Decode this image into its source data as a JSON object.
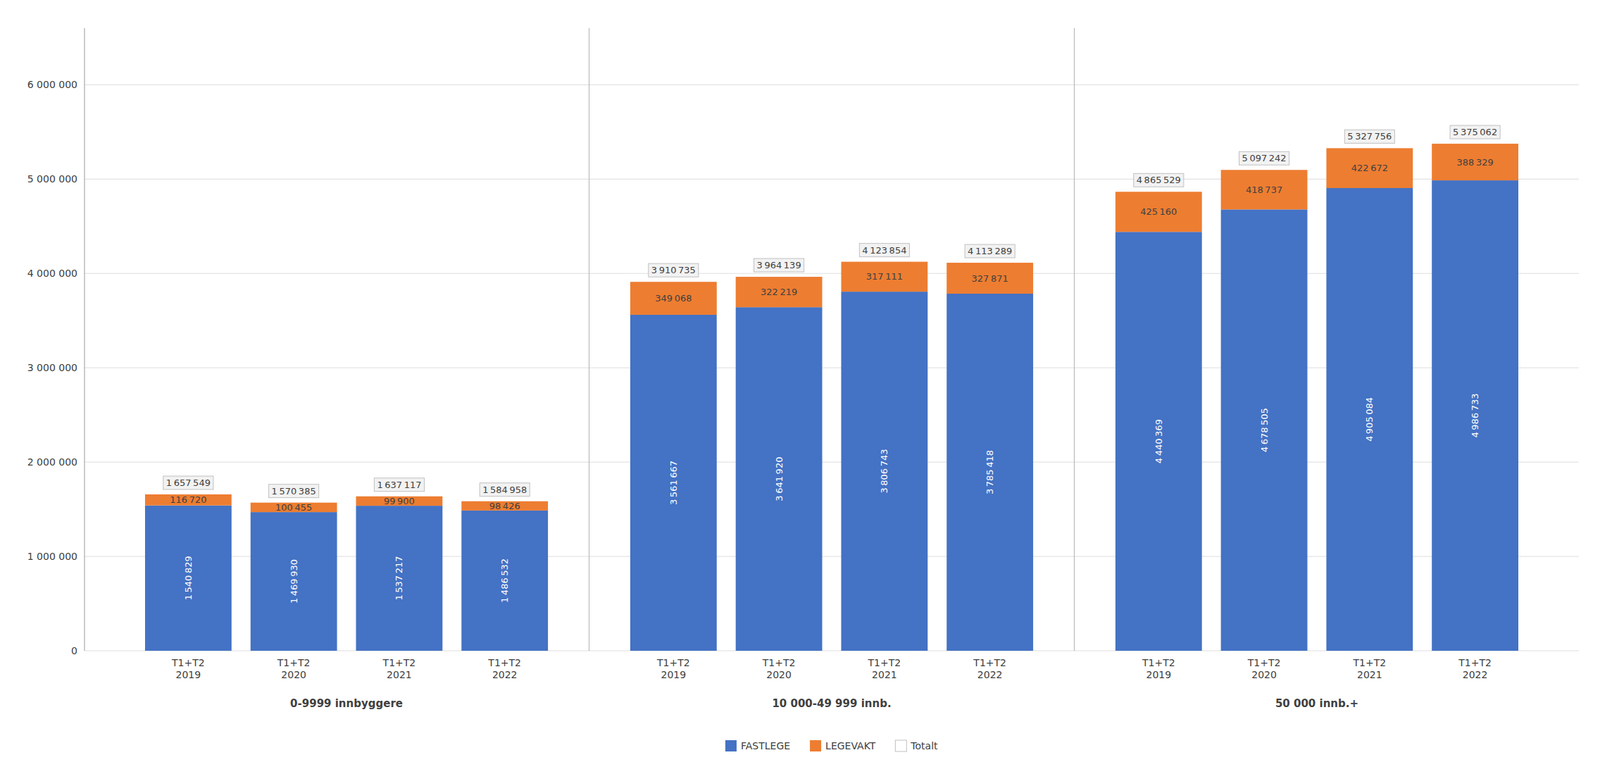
{
  "chart_data": {
    "type": "bar",
    "stacked": true,
    "data_labels": true,
    "grid": true,
    "legend": "bottom",
    "categories": [
      "T1+T2\n2019",
      "T1+T2\n2020",
      "T1+T2\n2021",
      "T1+T2\n2022",
      "T1+T2\n2019",
      "T1+T2\n2020",
      "T1+T2\n2021",
      "T1+T2\n2022",
      "T1+T2\n2019",
      "T1+T2\n2020",
      "T1+T2\n2021",
      "T1+T2\n2022"
    ],
    "category_groups": [
      "0-9999 innbyggere",
      "0-9999 innbyggere",
      "0-9999 innbyggere",
      "0-9999 innbyggere",
      "10 000-49 999 innb.",
      "10 000-49 999 innb.",
      "10 000-49 999 innb.",
      "10 000-49 999 innb.",
      "50 000 innb.+",
      "50 000 innb.+",
      "50 000 innb.+",
      "50 000 innb.+"
    ],
    "series": [
      {
        "name": "FASTLEGE",
        "color": "#4472C4",
        "values": [
          1540829,
          1469930,
          1537217,
          1486532,
          3561667,
          3641920,
          3806743,
          3785418,
          4440369,
          4678505,
          4905084,
          4986733
        ],
        "value_labels": [
          "1 540 829",
          "1 469 930",
          "1 537 217",
          "1 486 532",
          "3 561 667",
          "3 641 920",
          "3 806 743",
          "3 785 418",
          "4 440 369",
          "4 678 505",
          "4 905 084",
          "4 986 733"
        ]
      },
      {
        "name": "LEGEVAKT",
        "color": "#ED7D31",
        "values": [
          116720,
          100455,
          99900,
          98426,
          349068,
          322219,
          317111,
          327871,
          425160,
          418737,
          422672,
          388329
        ],
        "value_labels": [
          "116 720",
          "100 455",
          "99 900",
          "98 426",
          "349 068",
          "322 219",
          "317 111",
          "327 871",
          "425 160",
          "418 737",
          "422 672",
          "388 329"
        ]
      },
      {
        "name": "Totalt",
        "type": "total",
        "values": [
          1657549,
          1570385,
          1637117,
          1584958,
          3910735,
          3964139,
          4123854,
          4113289,
          4865529,
          5097242,
          5327756,
          5375062
        ],
        "value_labels": [
          "1 657 549",
          "1 570 385",
          "1 637 117",
          "1 584 958",
          "3 910 735",
          "3 964 139",
          "4 123 854",
          "4 113 289",
          "4 865 529",
          "5 097 242",
          "5 327 756",
          "5 375 062"
        ]
      }
    ],
    "ylim": [
      0,
      6600000
    ],
    "yticks": [
      0,
      {
        "value": 1000000,
        "label": "1 000 000"
      },
      {
        "value": 2000000,
        "label": "2 000 000"
      },
      {
        "value": 3000000,
        "label": "3 000 000"
      },
      {
        "value": 4000000,
        "label": "4 000 000"
      },
      {
        "value": 5000000,
        "label": "5 000 000"
      },
      {
        "value": 6000000,
        "label": "6 000 000"
      }
    ]
  }
}
